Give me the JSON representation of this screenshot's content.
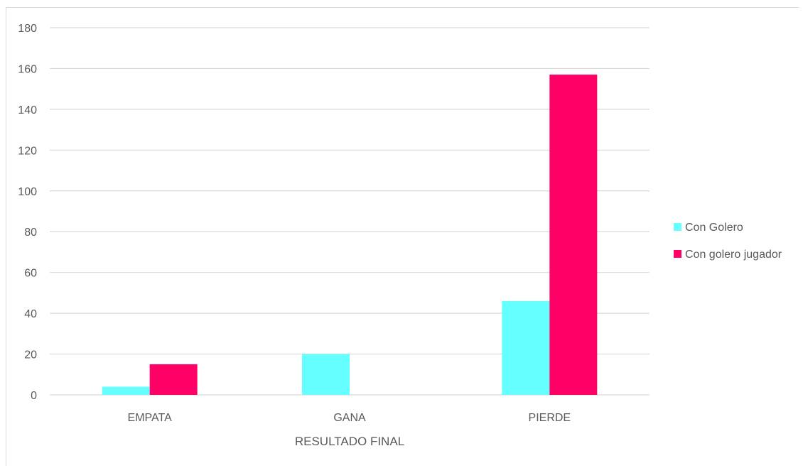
{
  "chart_data": {
    "type": "bar",
    "title": "",
    "xlabel": "RESULTADO FINAL",
    "ylabel": "",
    "categories": [
      "EMPATA",
      "GANA",
      "PIERDE"
    ],
    "series": [
      {
        "name": "Con Golero",
        "color": "#66FFFF",
        "values": [
          4,
          20,
          46
        ]
      },
      {
        "name": "Con golero jugador",
        "color": "#FF0066",
        "values": [
          15,
          0,
          157
        ]
      }
    ],
    "ylim": [
      0,
      180
    ],
    "yticks": [
      0,
      20,
      40,
      60,
      80,
      100,
      120,
      140,
      160,
      180
    ],
    "grid": true,
    "legend_position": "right"
  }
}
